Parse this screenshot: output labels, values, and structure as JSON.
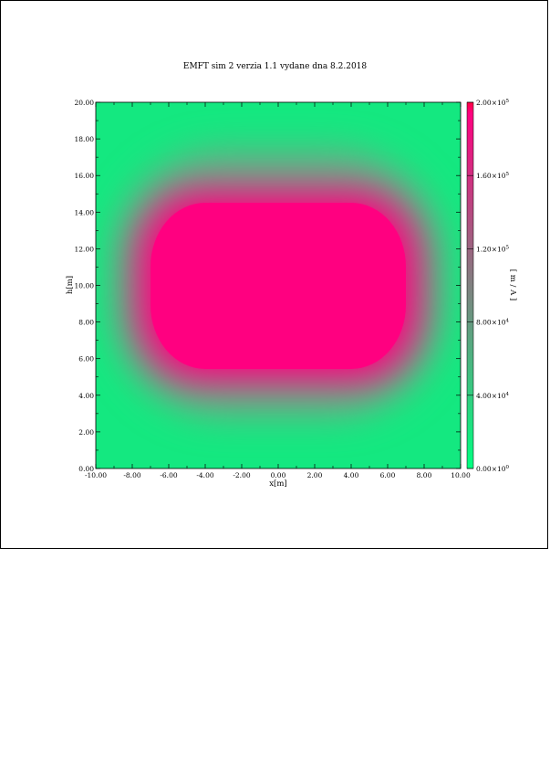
{
  "chart_data": {
    "type": "heatmap",
    "title": "EMFT sim 2 verzia 1.1 vydane dna 8.2.2018",
    "xlabel": "x[m]",
    "ylabel": "h[m]",
    "colorbar_label": "[ m / A ]",
    "xlim": [
      -10,
      10
    ],
    "ylim": [
      0,
      20
    ],
    "x_ticks": [
      -10,
      -8,
      -6,
      -4,
      -2,
      0,
      2,
      4,
      6,
      8,
      10
    ],
    "x_tick_labels": [
      "-10.00",
      "-8.00",
      "-6.00",
      "-4.00",
      "-2.00",
      "0.00",
      "2.00",
      "4.00",
      "6.00",
      "8.00",
      "10.00"
    ],
    "y_ticks": [
      0,
      2,
      4,
      6,
      8,
      10,
      12,
      14,
      16,
      18,
      20
    ],
    "y_tick_labels": [
      "0.00",
      "2.00",
      "4.00",
      "6.00",
      "8.00",
      "10.00",
      "12.00",
      "14.00",
      "16.00",
      "18.00",
      "20.00"
    ],
    "colorbar": {
      "range": [
        0,
        200000
      ],
      "ticks": [
        0,
        40000,
        80000,
        120000,
        160000,
        200000
      ],
      "tick_labels": [
        {
          "mantissa": "0.00×10",
          "exp": "0"
        },
        {
          "mantissa": "4.00×10",
          "exp": "4"
        },
        {
          "mantissa": "8.00×10",
          "exp": "4"
        },
        {
          "mantissa": "1.20×10",
          "exp": "5"
        },
        {
          "mantissa": "1.60×10",
          "exp": "5"
        },
        {
          "mantissa": "2.00×10",
          "exp": "5"
        }
      ],
      "colors": [
        "#00ff80",
        "#808080",
        "#ff0080",
        "#ff0040"
      ]
    },
    "saturated_region": {
      "shape": "rounded-rectangle",
      "x_range": [
        -7,
        7
      ],
      "y_range": [
        5,
        15
      ],
      "value": 200000
    },
    "background_value": 10000
  }
}
